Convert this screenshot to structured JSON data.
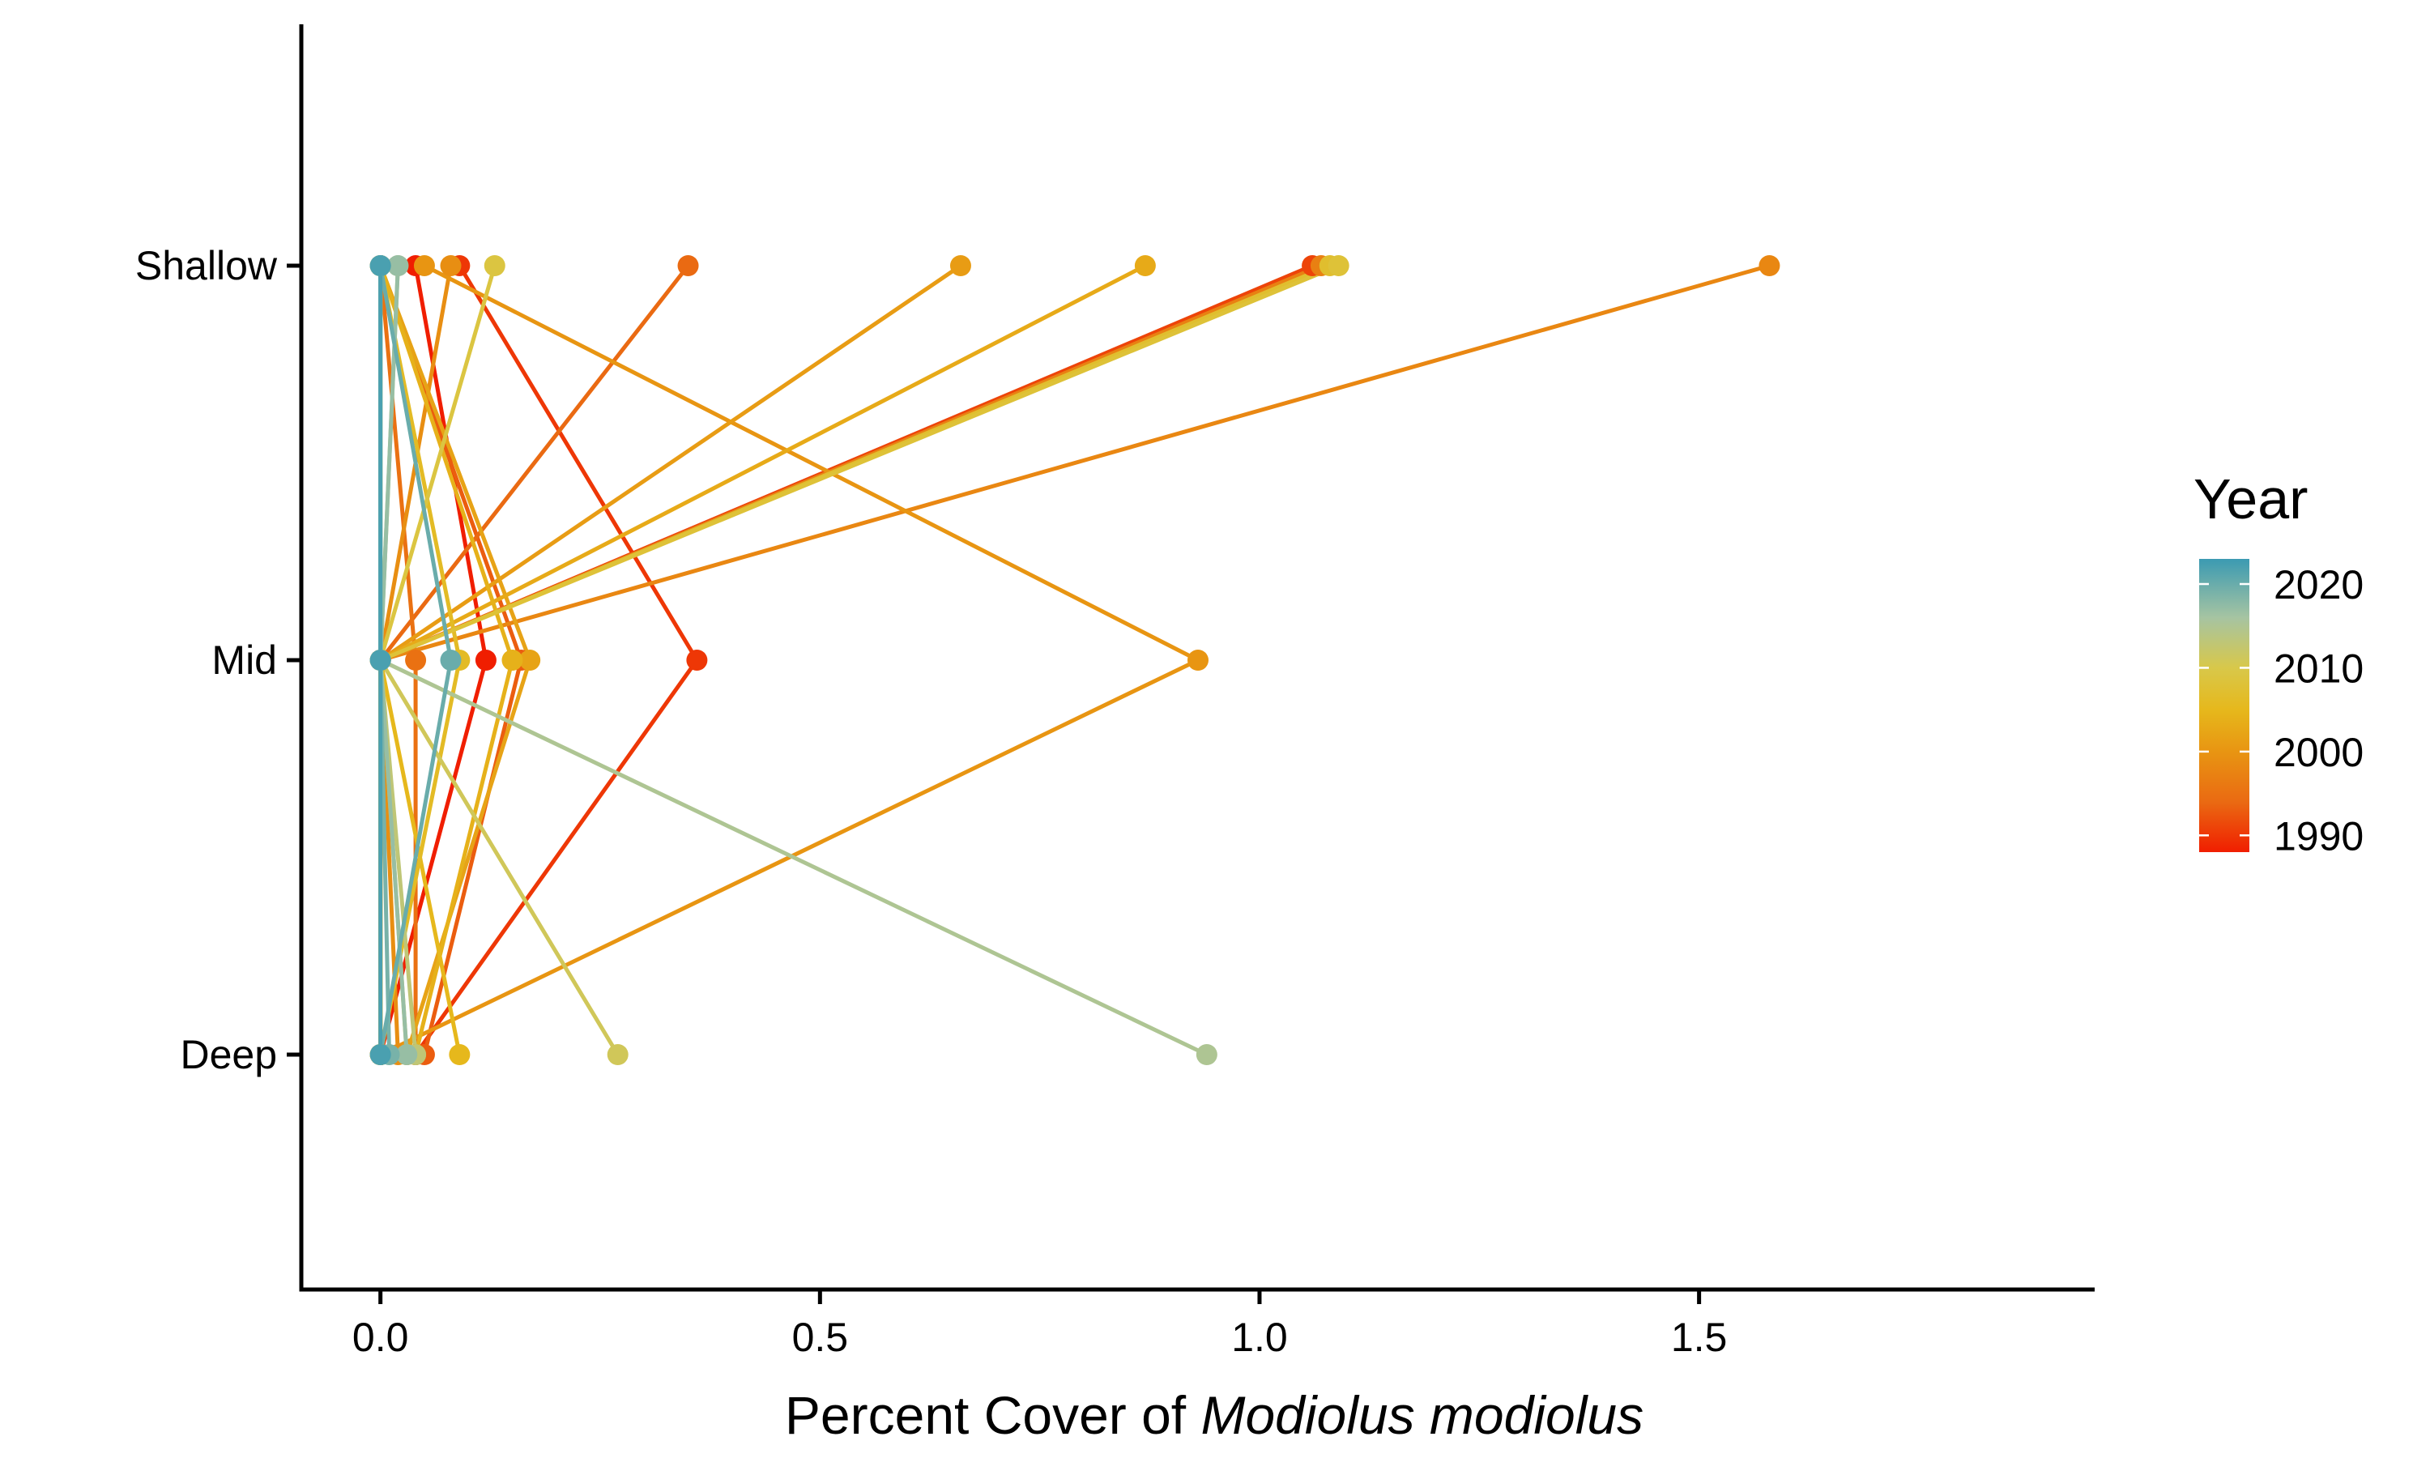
{
  "chart_data": {
    "type": "line",
    "title": "",
    "xlabel_prefix": "Percent Cover of ",
    "xlabel_italic": "Modiolus modiolus",
    "ylabel": "",
    "xlim": [
      -0.09,
      1.95
    ],
    "x_ticks": [
      0.0,
      0.5,
      1.0,
      1.5
    ],
    "x_tick_labels": [
      "0.0",
      "0.5",
      "1.0",
      "1.5"
    ],
    "categories": [
      "Shallow",
      "Mid",
      "Deep"
    ],
    "grid": false,
    "legend": {
      "title": "Year",
      "placement": "right",
      "labels": [
        "2020",
        "2010",
        "2000",
        "1990"
      ],
      "values": [
        2020,
        2010,
        2000,
        1990
      ],
      "range": [
        1988,
        2023
      ],
      "gradient": [
        {
          "year": 1988,
          "color": "#f01e00"
        },
        {
          "year": 1994,
          "color": "#ea6a12"
        },
        {
          "year": 2000,
          "color": "#e89512"
        },
        {
          "year": 2005,
          "color": "#e6b81c"
        },
        {
          "year": 2010,
          "color": "#d8c84a"
        },
        {
          "year": 2016,
          "color": "#a6c4a2"
        },
        {
          "year": 2023,
          "color": "#3b9ab2"
        }
      ]
    },
    "series": [
      {
        "year": 1988,
        "shallow": 0.04,
        "mid": 0.12,
        "deep": 0.0
      },
      {
        "year": 1990,
        "shallow": 0.09,
        "mid": 0.36,
        "deep": 0.04
      },
      {
        "year": 1991,
        "shallow": 1.06,
        "mid": 0.0,
        "deep": 0.0
      },
      {
        "year": 1993,
        "shallow": 0.0,
        "mid": 0.16,
        "deep": 0.05
      },
      {
        "year": 1994,
        "shallow": 0.35,
        "mid": 0.0,
        "deep": 0.0
      },
      {
        "year": 1995,
        "shallow": 0.0,
        "mid": 0.04,
        "deep": 0.04
      },
      {
        "year": 1997,
        "shallow": 1.07,
        "mid": 0.0,
        "deep": 0.0
      },
      {
        "year": 1998,
        "shallow": 1.58,
        "mid": 0.0,
        "deep": 0.0
      },
      {
        "year": 1999,
        "shallow": 0.08,
        "mid": 0.0,
        "deep": 0.02
      },
      {
        "year": 2000,
        "shallow": 0.05,
        "mid": 0.93,
        "deep": 0.0
      },
      {
        "year": 2001,
        "shallow": 0.66,
        "mid": 0.0,
        "deep": 0.0
      },
      {
        "year": 2002,
        "shallow": 0.0,
        "mid": 0.17,
        "deep": 0.03
      },
      {
        "year": 2003,
        "shallow": 0.87,
        "mid": 0.0,
        "deep": 0.0
      },
      {
        "year": 2004,
        "shallow": 0.0,
        "mid": 0.15,
        "deep": 0.04
      },
      {
        "year": 2005,
        "shallow": 0.0,
        "mid": 0.0,
        "deep": 0.09
      },
      {
        "year": 2006,
        "shallow": 0.0,
        "mid": 0.09,
        "deep": 0.0
      },
      {
        "year": 2007,
        "shallow": 1.08,
        "mid": 0.0,
        "deep": 0.0
      },
      {
        "year": 2008,
        "shallow": 1.09,
        "mid": 0.0,
        "deep": 0.0
      },
      {
        "year": 2009,
        "shallow": 0.13,
        "mid": 0.0,
        "deep": 0.03
      },
      {
        "year": 2011,
        "shallow": 0.0,
        "mid": 0.0,
        "deep": 0.27
      },
      {
        "year": 2013,
        "shallow": 0.02,
        "mid": 0.0,
        "deep": 0.04
      },
      {
        "year": 2015,
        "shallow": 0.0,
        "mid": 0.0,
        "deep": 0.94
      },
      {
        "year": 2017,
        "shallow": 0.02,
        "mid": 0.0,
        "deep": 0.03
      },
      {
        "year": 2019,
        "shallow": 0.0,
        "mid": 0.0,
        "deep": 0.01
      },
      {
        "year": 2020,
        "shallow": 0.0,
        "mid": 0.08,
        "deep": 0.0
      },
      {
        "year": 2022,
        "shallow": 0.0,
        "mid": 0.0,
        "deep": 0.0
      }
    ]
  }
}
